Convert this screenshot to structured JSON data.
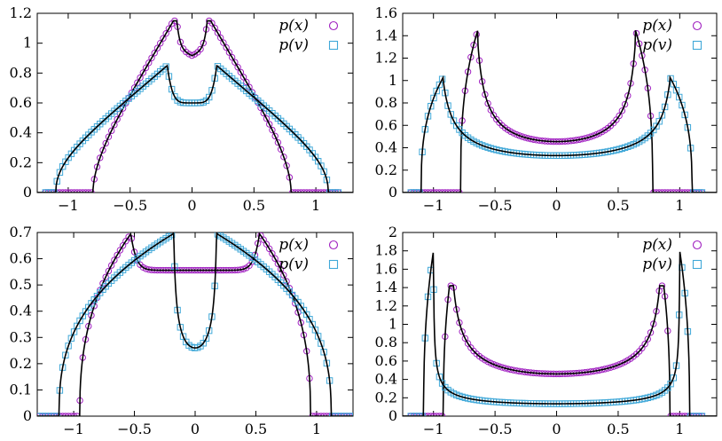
{
  "chart_data": [
    {
      "type": "scatter",
      "panel": "top-left",
      "xlim": [
        -1.25,
        1.3
      ],
      "ylim": [
        0,
        1.2
      ],
      "xticks": [
        -1,
        -0.5,
        0,
        0.5,
        1
      ],
      "xtick_labels": [
        "",
        "",
        "",
        "",
        ""
      ],
      "yticks": [
        0,
        0.2,
        0.4,
        0.6,
        0.8,
        1.0,
        1.2
      ],
      "ytick_labels": [
        "0",
        "0.2",
        "0.4",
        "0.6",
        "0.8",
        "1",
        "1.2"
      ],
      "legend": "top-right",
      "series": [
        {
          "name": "p(x)",
          "marker": "circle",
          "color": "#a020c0",
          "params": {
            "kind": "tl",
            "which": "x"
          }
        },
        {
          "name": "p(v)",
          "marker": "square",
          "color": "#40a8d8",
          "params": {
            "kind": "tl",
            "which": "v"
          }
        }
      ]
    },
    {
      "type": "scatter",
      "panel": "top-right",
      "xlim": [
        -1.25,
        1.3
      ],
      "ylim": [
        0,
        1.6
      ],
      "xticks": [
        -1,
        -0.5,
        0,
        0.5,
        1
      ],
      "xtick_labels": [
        "",
        "",
        "",
        "",
        ""
      ],
      "yticks": [
        0,
        0.2,
        0.4,
        0.6,
        0.8,
        1.0,
        1.2,
        1.4,
        1.6
      ],
      "ytick_labels": [
        "0",
        "0.2",
        "0.4",
        "0.6",
        "0.8",
        "1",
        "1.2",
        "1.4",
        "1.6"
      ],
      "legend": "top-right",
      "series": [
        {
          "name": "p(x)",
          "marker": "circle",
          "color": "#a020c0",
          "params": {
            "kind": "tr",
            "which": "x"
          }
        },
        {
          "name": "p(v)",
          "marker": "square",
          "color": "#40a8d8",
          "params": {
            "kind": "tr",
            "which": "v"
          }
        }
      ]
    },
    {
      "type": "scatter",
      "panel": "bottom-left",
      "xlim": [
        -1.3,
        1.3
      ],
      "ylim": [
        0,
        0.7
      ],
      "xticks": [
        -1,
        -0.5,
        0,
        0.5,
        1
      ],
      "xtick_labels": [
        "−1",
        "−0.5",
        "0",
        "0.5",
        "1"
      ],
      "yticks": [
        0,
        0.1,
        0.2,
        0.3,
        0.4,
        0.5,
        0.6,
        0.7
      ],
      "ytick_labels": [
        "0",
        "0.1",
        "0.2",
        "0.3",
        "0.4",
        "0.5",
        "0.6",
        "0.7"
      ],
      "legend": "top-right",
      "series": [
        {
          "name": "p(x)",
          "marker": "circle",
          "color": "#a020c0",
          "params": {
            "kind": "bl",
            "which": "x"
          }
        },
        {
          "name": "p(v)",
          "marker": "square",
          "color": "#40a8d8",
          "params": {
            "kind": "bl",
            "which": "v"
          }
        }
      ]
    },
    {
      "type": "scatter",
      "panel": "bottom-right",
      "xlim": [
        -1.25,
        1.3
      ],
      "ylim": [
        0,
        2
      ],
      "xticks": [
        -1,
        -0.5,
        0,
        0.5,
        1
      ],
      "xtick_labels": [
        "−1",
        "−0.5",
        "0",
        "0.5",
        "1"
      ],
      "yticks": [
        0,
        0.2,
        0.4,
        0.6,
        0.8,
        1.0,
        1.2,
        1.4,
        1.6,
        1.8,
        2.0
      ],
      "ytick_labels": [
        "0",
        "0.2",
        "0.4",
        "0.6",
        "0.8",
        "1",
        "1.2",
        "1.4",
        "1.6",
        "1.8",
        "2"
      ],
      "legend": "top-right",
      "series": [
        {
          "name": "p(x)",
          "marker": "circle",
          "color": "#a020c0",
          "params": {
            "kind": "br",
            "which": "x"
          }
        },
        {
          "name": "p(v)",
          "marker": "square",
          "color": "#40a8d8",
          "params": {
            "kind": "br",
            "which": "v"
          }
        }
      ]
    }
  ],
  "panel_tick_labels_top": {
    "top_left_x": [
      "−1",
      "−0.5",
      "0",
      "0.5",
      "1"
    ],
    "top_right_x": [
      "−1",
      "−0.5",
      "0",
      "0.5",
      "1"
    ]
  }
}
